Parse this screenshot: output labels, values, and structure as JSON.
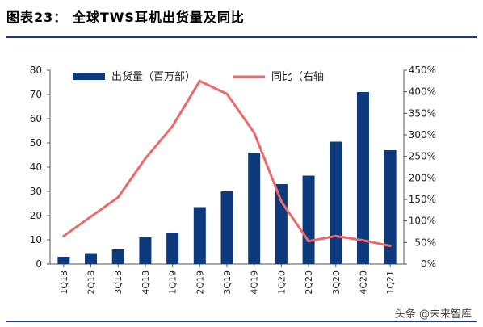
{
  "figure_title": "图表23： 全球TWS耳机出货量及同比",
  "watermark": "头条 @未来智库",
  "colors": {
    "bar": "#0c3a7d",
    "line": "#ee6a6a",
    "axis": "#555555"
  },
  "chart_data": {
    "type": "bar+line",
    "categories": [
      "1Q18",
      "2Q18",
      "3Q18",
      "4Q18",
      "1Q19",
      "2Q19",
      "3Q19",
      "4Q19",
      "1Q20",
      "2Q20",
      "3Q20",
      "4Q20",
      "1Q21"
    ],
    "series": [
      {
        "name": "出货量（百万部）",
        "type": "bar",
        "axis": "left",
        "values": [
          3,
          4.5,
          6,
          11,
          13,
          23.5,
          30,
          46,
          33,
          36.5,
          50.5,
          71,
          47
        ]
      },
      {
        "name": "同比（右轴",
        "type": "line",
        "axis": "right",
        "values": [
          65,
          110,
          155,
          245,
          320,
          425,
          395,
          305,
          145,
          53,
          65,
          55,
          42
        ]
      }
    ],
    "left_axis": {
      "ylim": [
        0,
        80
      ],
      "ticks": [
        "0",
        "10",
        "20",
        "30",
        "40",
        "50",
        "60",
        "70",
        "80"
      ]
    },
    "right_axis": {
      "ylim": [
        0,
        450
      ],
      "ticks": [
        "0%",
        "50%",
        "100%",
        "150%",
        "200%",
        "250%",
        "300%",
        "350%",
        "400%",
        "450%"
      ]
    },
    "legend_position": "top-center",
    "grid": false
  }
}
